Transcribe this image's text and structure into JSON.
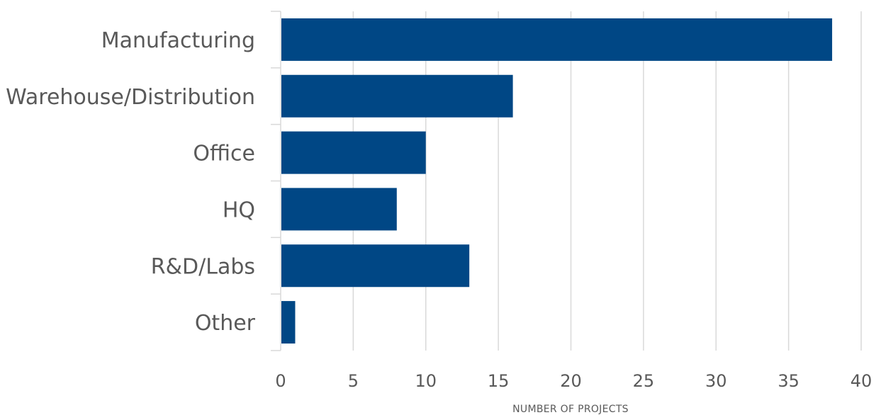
{
  "chart_data": {
    "type": "bar",
    "orientation": "horizontal",
    "categories": [
      "Manufacturing",
      "Warehouse/Distribution",
      "Office",
      "HQ",
      "R&D/Labs",
      "Other"
    ],
    "values": [
      38,
      16,
      10,
      8,
      13,
      1
    ],
    "title": "",
    "xlabel": "NUMBER OF PROJECTS",
    "ylabel": "",
    "xlim": [
      0,
      40
    ],
    "xticks": [
      "0",
      "5",
      "10",
      "15",
      "20",
      "25",
      "30",
      "35",
      "40"
    ],
    "grid": "vertical",
    "legend": "none",
    "bar_color": "#004785",
    "grid_color": "#d9d9d9",
    "text_color": "#595959"
  }
}
